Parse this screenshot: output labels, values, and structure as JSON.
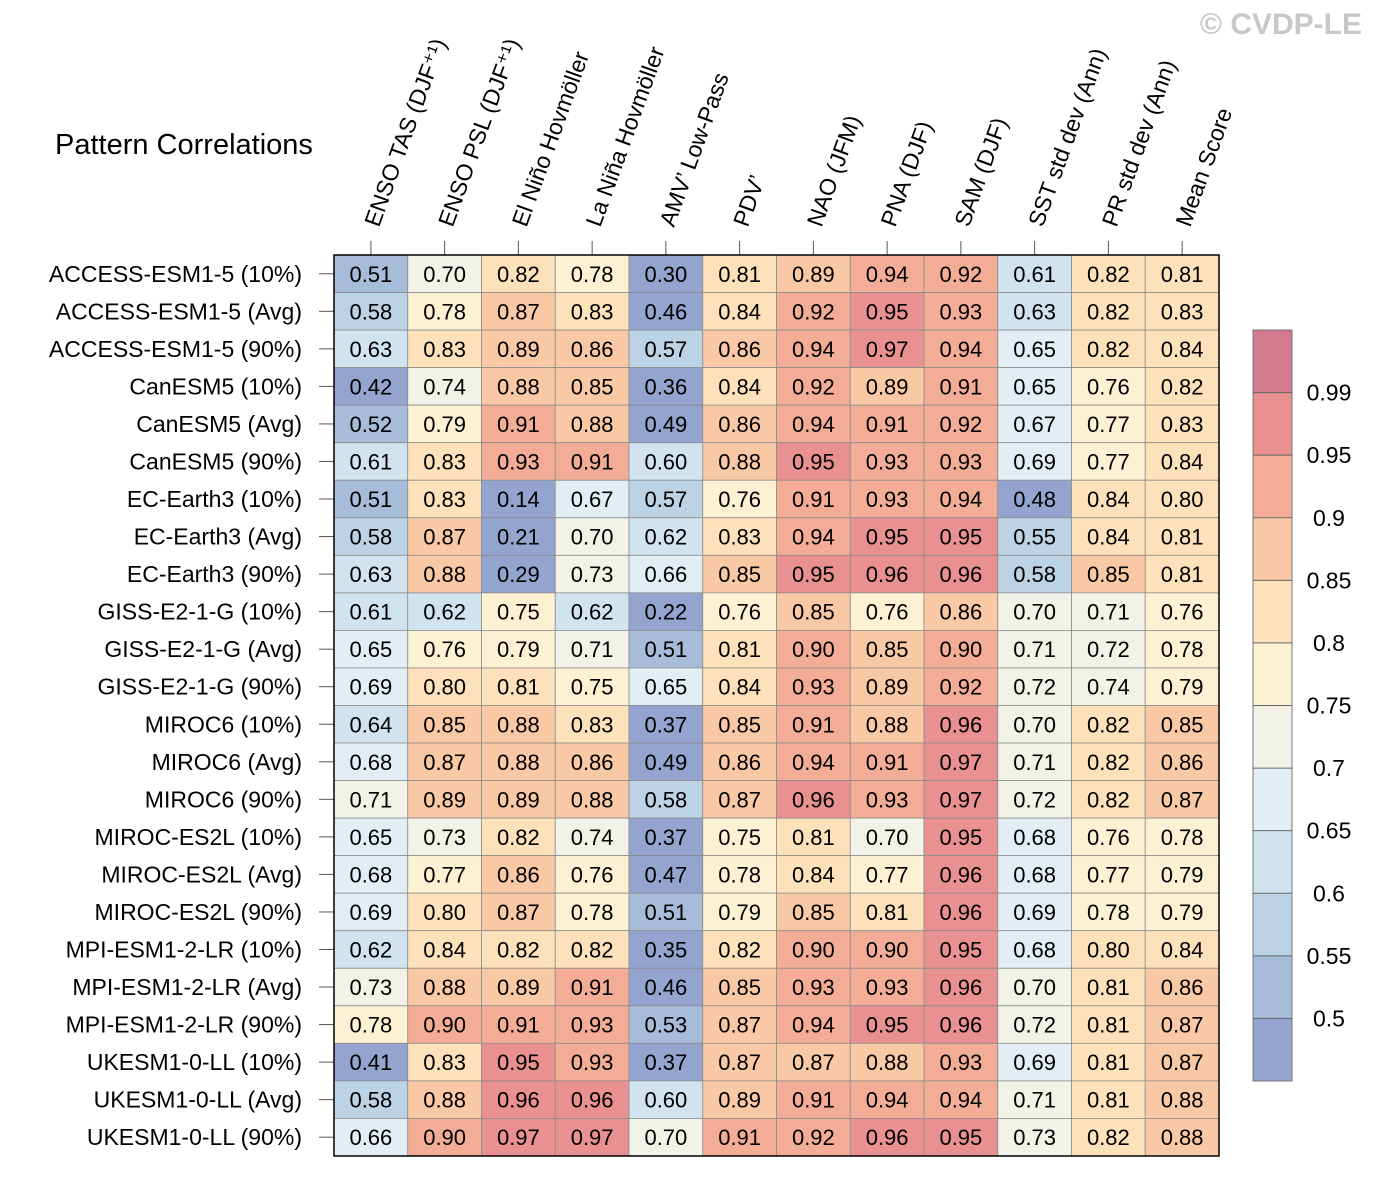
{
  "watermark": "© CVDP-LE",
  "chart_data": {
    "type": "heatmap",
    "title": "Pattern Correlations",
    "columns": [
      "ENSO TAS (DJF⁺¹)",
      "ENSO PSL (DJF⁺¹)",
      "El Niño Hovmöller",
      "La Niña Hovmöller",
      "AMV’ Low-Pass",
      "PDV’",
      "NAO (JFM)",
      "PNA (DJF)",
      "SAM (DJF)",
      "SST std dev (Ann)",
      "PR std dev (Ann)",
      "Mean Score"
    ],
    "rows": [
      "ACCESS-ESM1-5 (10%)",
      "ACCESS-ESM1-5 (Avg)",
      "ACCESS-ESM1-5 (90%)",
      "CanESM5 (10%)",
      "CanESM5 (Avg)",
      "CanESM5 (90%)",
      "EC-Earth3 (10%)",
      "EC-Earth3 (Avg)",
      "EC-Earth3 (90%)",
      "GISS-E2-1-G (10%)",
      "GISS-E2-1-G (Avg)",
      "GISS-E2-1-G (90%)",
      "MIROC6 (10%)",
      "MIROC6 (Avg)",
      "MIROC6 (90%)",
      "MIROC-ES2L (10%)",
      "MIROC-ES2L (Avg)",
      "MIROC-ES2L (90%)",
      "MPI-ESM1-2-LR (10%)",
      "MPI-ESM1-2-LR (Avg)",
      "MPI-ESM1-2-LR (90%)",
      "UKESM1-0-LL (10%)",
      "UKESM1-0-LL (Avg)",
      "UKESM1-0-LL (90%)"
    ],
    "values": [
      [
        "0.51",
        "0.70",
        "0.82",
        "0.78",
        "0.30",
        "0.81",
        "0.89",
        "0.94",
        "0.92",
        "0.61",
        "0.82",
        "0.81"
      ],
      [
        "0.58",
        "0.78",
        "0.87",
        "0.83",
        "0.46",
        "0.84",
        "0.92",
        "0.95",
        "0.93",
        "0.63",
        "0.82",
        "0.83"
      ],
      [
        "0.63",
        "0.83",
        "0.89",
        "0.86",
        "0.57",
        "0.86",
        "0.94",
        "0.97",
        "0.94",
        "0.65",
        "0.82",
        "0.84"
      ],
      [
        "0.42",
        "0.74",
        "0.88",
        "0.85",
        "0.36",
        "0.84",
        "0.92",
        "0.89",
        "0.91",
        "0.65",
        "0.76",
        "0.82"
      ],
      [
        "0.52",
        "0.79",
        "0.91",
        "0.88",
        "0.49",
        "0.86",
        "0.94",
        "0.91",
        "0.92",
        "0.67",
        "0.77",
        "0.83"
      ],
      [
        "0.61",
        "0.83",
        "0.93",
        "0.91",
        "0.60",
        "0.88",
        "0.95",
        "0.93",
        "0.93",
        "0.69",
        "0.77",
        "0.84"
      ],
      [
        "0.51",
        "0.83",
        "0.14",
        "0.67",
        "0.57",
        "0.76",
        "0.91",
        "0.93",
        "0.94",
        "0.48",
        "0.84",
        "0.80"
      ],
      [
        "0.58",
        "0.87",
        "0.21",
        "0.70",
        "0.62",
        "0.83",
        "0.94",
        "0.95",
        "0.95",
        "0.55",
        "0.84",
        "0.81"
      ],
      [
        "0.63",
        "0.88",
        "0.29",
        "0.73",
        "0.66",
        "0.85",
        "0.95",
        "0.96",
        "0.96",
        "0.58",
        "0.85",
        "0.81"
      ],
      [
        "0.61",
        "0.62",
        "0.75",
        "0.62",
        "0.22",
        "0.76",
        "0.85",
        "0.76",
        "0.86",
        "0.70",
        "0.71",
        "0.76"
      ],
      [
        "0.65",
        "0.76",
        "0.79",
        "0.71",
        "0.51",
        "0.81",
        "0.90",
        "0.85",
        "0.90",
        "0.71",
        "0.72",
        "0.78"
      ],
      [
        "0.69",
        "0.80",
        "0.81",
        "0.75",
        "0.65",
        "0.84",
        "0.93",
        "0.89",
        "0.92",
        "0.72",
        "0.74",
        "0.79"
      ],
      [
        "0.64",
        "0.85",
        "0.88",
        "0.83",
        "0.37",
        "0.85",
        "0.91",
        "0.88",
        "0.96",
        "0.70",
        "0.82",
        "0.85"
      ],
      [
        "0.68",
        "0.87",
        "0.88",
        "0.86",
        "0.49",
        "0.86",
        "0.94",
        "0.91",
        "0.97",
        "0.71",
        "0.82",
        "0.86"
      ],
      [
        "0.71",
        "0.89",
        "0.89",
        "0.88",
        "0.58",
        "0.87",
        "0.96",
        "0.93",
        "0.97",
        "0.72",
        "0.82",
        "0.87"
      ],
      [
        "0.65",
        "0.73",
        "0.82",
        "0.74",
        "0.37",
        "0.75",
        "0.81",
        "0.70",
        "0.95",
        "0.68",
        "0.76",
        "0.78"
      ],
      [
        "0.68",
        "0.77",
        "0.86",
        "0.76",
        "0.47",
        "0.78",
        "0.84",
        "0.77",
        "0.96",
        "0.68",
        "0.77",
        "0.79"
      ],
      [
        "0.69",
        "0.80",
        "0.87",
        "0.78",
        "0.51",
        "0.79",
        "0.85",
        "0.81",
        "0.96",
        "0.69",
        "0.78",
        "0.79"
      ],
      [
        "0.62",
        "0.84",
        "0.82",
        "0.82",
        "0.35",
        "0.82",
        "0.90",
        "0.90",
        "0.95",
        "0.68",
        "0.80",
        "0.84"
      ],
      [
        "0.73",
        "0.88",
        "0.89",
        "0.91",
        "0.46",
        "0.85",
        "0.93",
        "0.93",
        "0.96",
        "0.70",
        "0.81",
        "0.86"
      ],
      [
        "0.78",
        "0.90",
        "0.91",
        "0.93",
        "0.53",
        "0.87",
        "0.94",
        "0.95",
        "0.96",
        "0.72",
        "0.81",
        "0.87"
      ],
      [
        "0.41",
        "0.83",
        "0.95",
        "0.93",
        "0.37",
        "0.87",
        "0.87",
        "0.88",
        "0.93",
        "0.69",
        "0.81",
        "0.87"
      ],
      [
        "0.58",
        "0.88",
        "0.96",
        "0.96",
        "0.60",
        "0.89",
        "0.91",
        "0.94",
        "0.94",
        "0.71",
        "0.81",
        "0.88"
      ],
      [
        "0.66",
        "0.90",
        "0.97",
        "0.97",
        "0.70",
        "0.91",
        "0.92",
        "0.96",
        "0.95",
        "0.73",
        "0.82",
        "0.88"
      ]
    ],
    "colorbar": {
      "levels": [
        "0.5",
        "0.55",
        "0.6",
        "0.65",
        "0.7",
        "0.75",
        "0.8",
        "0.85",
        "0.9",
        "0.95",
        "0.99"
      ],
      "colors": [
        "#93a5cf",
        "#a7bcd9",
        "#bcd2e5",
        "#d0e3ee",
        "#e3eef4",
        "#f2f2e8",
        "#fdf1d3",
        "#fde1ba",
        "#f9c8a4",
        "#f3ad97",
        "#e99091",
        "#d47a8f"
      ]
    }
  }
}
